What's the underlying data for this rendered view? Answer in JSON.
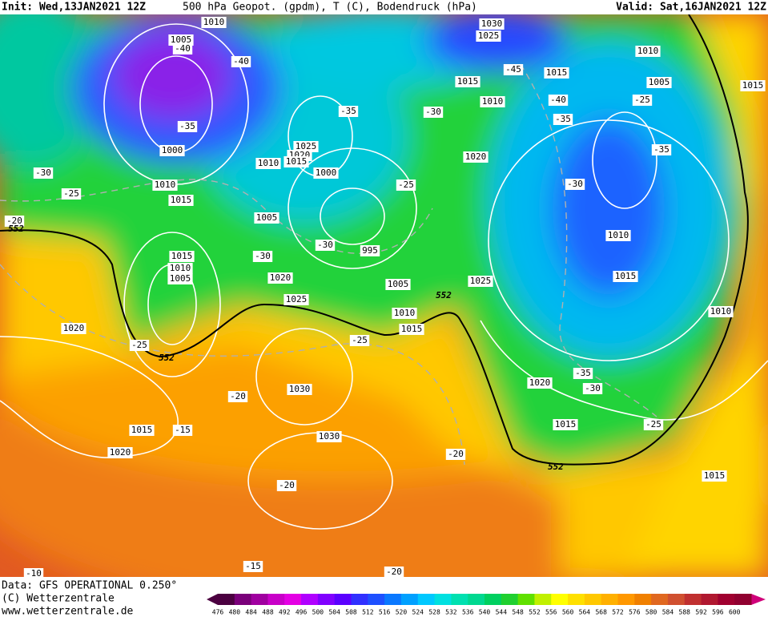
{
  "header": {
    "init": "Init: Wed,13JAN2021 12Z",
    "field": "500 hPa Geopot. (gpdm), T (C), Bodendruck (hPa)",
    "valid": "Valid: Sat,16JAN2021 12Z"
  },
  "footer": {
    "data": "Data: GFS OPERATIONAL 0.250°",
    "copyright": "(C) Wetterzentrale",
    "url": "www.wetterzentrale.de"
  },
  "colorbar": [
    476,
    480,
    484,
    488,
    492,
    496,
    500,
    504,
    508,
    512,
    516,
    520,
    524,
    528,
    532,
    536,
    540,
    544,
    548,
    552,
    556,
    560,
    564,
    568,
    572,
    576,
    580,
    584,
    588,
    592,
    596,
    600
  ],
  "pressure_labels": [
    "1010",
    "1005",
    "1030",
    "1025",
    "1010",
    "1005",
    "1015",
    "1015",
    "1015",
    "1010",
    "1000",
    "1025",
    "1020",
    "1015",
    "1010",
    "1000",
    "1020",
    "1010",
    "1015",
    "1005",
    "995",
    "1010",
    "1015",
    "1010",
    "1005",
    "1020",
    "1005",
    "1025",
    "1015",
    "1025",
    "1010",
    "1015",
    "1010",
    "1020",
    "1030",
    "1020",
    "1015",
    "1015",
    "1030",
    "1020",
    "1015"
  ],
  "temperature_labels": [
    "-40",
    "-40",
    "-45",
    "-40",
    "-35",
    "-25",
    "-35",
    "-35",
    "-30",
    "-35",
    "-30",
    "-25",
    "-25",
    "-30",
    "-20",
    "-30",
    "-30",
    "-25",
    "-25",
    "-20",
    "-35",
    "-30",
    "-15",
    "-25",
    "-20",
    "-20",
    "-15",
    "-20",
    "-10"
  ],
  "thickness_labels": [
    "552",
    "552",
    "552",
    "552"
  ]
}
